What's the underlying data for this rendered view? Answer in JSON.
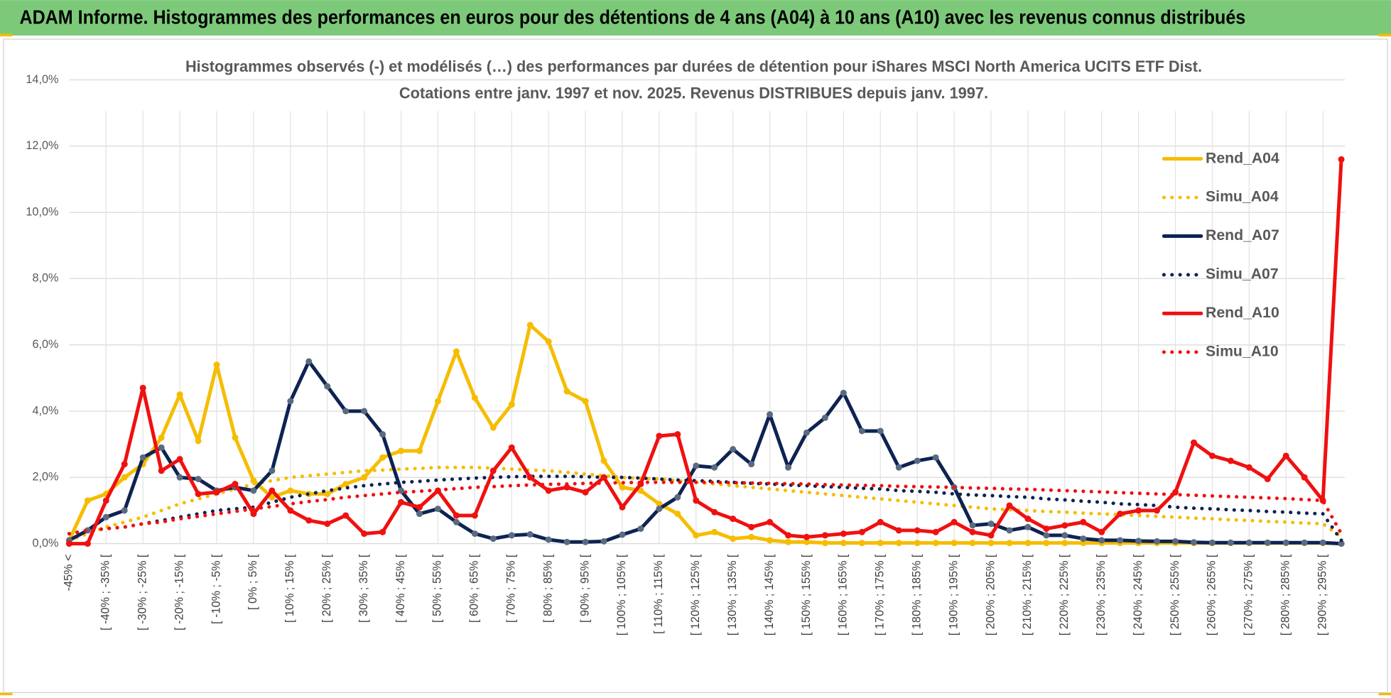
{
  "chart_data": {
    "type": "line",
    "banner": "ADAM Informe. Histogrammes des performances en euros pour des détentions de 4 ans (A04) à 10 ans (A10) avec les revenus connus distribués",
    "title": "Histogrammes observés (-) et modélisés (…) des performances par durées de détention pour iShares MSCI North America UCITS ETF Dist.",
    "subtitle": "Cotations entre janv. 1997 et nov. 2025. Revenus DISTRIBUES depuis janv. 1997.",
    "categories": [
      "-45% <",
      null,
      "[ -40% ; -35% [",
      null,
      "[ -30% ; -25% [",
      null,
      "[ -20% ; -15% [",
      null,
      "[ -10% ; -5% [",
      null,
      "[ 0% ; 5% [",
      null,
      "[ 10% ; 15% [",
      null,
      "[ 20% ; 25% [",
      null,
      "[ 30% ; 35% [",
      null,
      "[ 40% ; 45% [",
      null,
      "[ 50% ; 55% [",
      null,
      "[ 60% ; 65% [",
      null,
      "[ 70% ; 75% [",
      null,
      "[ 80% ; 85% [",
      null,
      "[ 90% ; 95% [",
      null,
      "[ 100% ; 105% [",
      null,
      "[ 110% ; 115% [",
      null,
      "[ 120% ; 125% [",
      null,
      "[ 130% ; 135% [",
      null,
      "[ 140% ; 145% [",
      null,
      "[ 150% ; 155% [",
      null,
      "[ 160% ; 165% [",
      null,
      "[ 170% ; 175% [",
      null,
      "[ 180% ; 185% [",
      null,
      "[ 190% ; 195% [",
      null,
      "[ 200% ; 205% [",
      null,
      "[ 210% ; 215% [",
      null,
      "[ 220% ; 225% [",
      null,
      "[ 230% ; 235% [",
      null,
      "[ 240% ; 245% [",
      null,
      "[ 250% ; 255% [",
      null,
      "[ 260% ; 265% [",
      null,
      "[ 270% ; 275% [",
      null,
      "[ 280% ; 285% [",
      null,
      "[ 290% ; 295% [",
      null
    ],
    "ylim": [
      0,
      14
    ],
    "yticks": [
      {
        "value": 0,
        "label": "0,0%"
      },
      {
        "value": 2,
        "label": "2,0%"
      },
      {
        "value": 4,
        "label": "4,0%"
      },
      {
        "value": 6,
        "label": "6,0%"
      },
      {
        "value": 8,
        "label": "8,0%"
      },
      {
        "value": 10,
        "label": "10,0%"
      },
      {
        "value": 12,
        "label": "12,0%"
      },
      {
        "value": 14,
        "label": "14,0%"
      }
    ],
    "grid": true,
    "legend": "right",
    "series": [
      {
        "name": "Rend_A04",
        "color": "#f5bd00",
        "style": "solid",
        "marker_color": "#f5bd00",
        "values": [
          0.1,
          1.3,
          1.5,
          2.0,
          2.4,
          3.2,
          4.5,
          3.1,
          5.4,
          3.2,
          1.9,
          1.4,
          1.6,
          1.5,
          1.5,
          1.8,
          2.0,
          2.6,
          2.8,
          2.8,
          4.3,
          5.8,
          4.4,
          3.5,
          4.2,
          6.6,
          6.1,
          4.6,
          4.3,
          2.5,
          1.7,
          1.6,
          1.2,
          0.9,
          0.25,
          0.35,
          0.15,
          0.2,
          0.1,
          0.05,
          0.05,
          0.02,
          0.02,
          0.02,
          0.02,
          0.02,
          0.02,
          0.02,
          0.02,
          0.02,
          0.02,
          0.02,
          0.02,
          0.02,
          0.02,
          0.02,
          0.02,
          0.02,
          0.02,
          0.02,
          0.02,
          0.02,
          0.02,
          0.02,
          0.02,
          0.02,
          0.02,
          0.02,
          0.02,
          0.0
        ]
      },
      {
        "name": "Simu_A04",
        "color": "#f5bd00",
        "style": "dotted",
        "values": [
          0.1,
          0.3,
          0.5,
          0.65,
          0.8,
          1.0,
          1.2,
          1.35,
          1.5,
          1.65,
          1.8,
          1.9,
          2.0,
          2.05,
          2.1,
          2.15,
          2.2,
          2.22,
          2.25,
          2.27,
          2.3,
          2.3,
          2.3,
          2.28,
          2.25,
          2.22,
          2.2,
          2.15,
          2.1,
          2.05,
          2.0,
          1.97,
          1.95,
          1.9,
          1.85,
          1.8,
          1.75,
          1.7,
          1.65,
          1.6,
          1.55,
          1.5,
          1.45,
          1.4,
          1.35,
          1.3,
          1.25,
          1.2,
          1.15,
          1.1,
          1.05,
          1.02,
          1.0,
          0.97,
          0.95,
          0.92,
          0.9,
          0.87,
          0.85,
          0.82,
          0.8,
          0.77,
          0.75,
          0.72,
          0.7,
          0.67,
          0.65,
          0.62,
          0.6,
          0.2
        ]
      },
      {
        "name": "Rend_A07",
        "color": "#0d2352",
        "style": "solid",
        "marker_color": "#5a6a80",
        "values": [
          0.1,
          0.4,
          0.8,
          1.0,
          2.6,
          2.9,
          2.0,
          1.95,
          1.6,
          1.7,
          1.6,
          2.2,
          4.3,
          5.5,
          4.75,
          4.0,
          4.0,
          3.3,
          1.6,
          0.9,
          1.05,
          0.65,
          0.3,
          0.15,
          0.25,
          0.28,
          0.12,
          0.05,
          0.05,
          0.07,
          0.27,
          0.45,
          1.05,
          1.4,
          2.35,
          2.3,
          2.85,
          2.4,
          3.9,
          2.3,
          3.35,
          3.8,
          4.55,
          3.4,
          3.4,
          2.3,
          2.5,
          2.6,
          1.7,
          0.55,
          0.6,
          0.4,
          0.5,
          0.25,
          0.25,
          0.15,
          0.1,
          0.1,
          0.08,
          0.07,
          0.07,
          0.04,
          0.03,
          0.03,
          0.03,
          0.03,
          0.03,
          0.03,
          0.03,
          0.0
        ]
      },
      {
        "name": "Simu_A07",
        "color": "#0d2352",
        "style": "dotted",
        "values": [
          0.3,
          0.4,
          0.45,
          0.5,
          0.6,
          0.7,
          0.8,
          0.9,
          1.0,
          1.05,
          1.1,
          1.25,
          1.4,
          1.5,
          1.6,
          1.68,
          1.75,
          1.8,
          1.85,
          1.88,
          1.92,
          1.95,
          1.98,
          2.0,
          2.02,
          2.03,
          2.03,
          2.03,
          2.02,
          2.0,
          2.0,
          1.98,
          1.95,
          1.92,
          1.9,
          1.88,
          1.85,
          1.82,
          1.8,
          1.77,
          1.75,
          1.72,
          1.7,
          1.67,
          1.65,
          1.6,
          1.58,
          1.55,
          1.5,
          1.47,
          1.45,
          1.42,
          1.4,
          1.35,
          1.32,
          1.28,
          1.25,
          1.2,
          1.18,
          1.15,
          1.1,
          1.07,
          1.05,
          1.02,
          1.0,
          0.97,
          0.95,
          0.92,
          0.9,
          0.1
        ]
      },
      {
        "name": "Rend_A10",
        "color": "#f01010",
        "style": "solid",
        "marker_color": "#f01010",
        "values": [
          0.0,
          0.0,
          1.3,
          2.4,
          4.7,
          2.2,
          2.55,
          1.5,
          1.55,
          1.8,
          0.9,
          1.6,
          1.0,
          0.7,
          0.6,
          0.85,
          0.3,
          0.35,
          1.25,
          1.1,
          1.6,
          0.85,
          0.85,
          2.2,
          2.9,
          2.0,
          1.6,
          1.7,
          1.55,
          2.0,
          1.1,
          1.8,
          3.25,
          3.3,
          1.3,
          0.95,
          0.75,
          0.5,
          0.65,
          0.25,
          0.2,
          0.25,
          0.3,
          0.35,
          0.65,
          0.4,
          0.4,
          0.35,
          0.65,
          0.35,
          0.25,
          1.15,
          0.75,
          0.45,
          0.55,
          0.65,
          0.35,
          0.9,
          1.0,
          1.0,
          1.55,
          3.05,
          2.65,
          2.5,
          2.3,
          1.95,
          2.65,
          2.0,
          1.3,
          11.6
        ]
      },
      {
        "name": "Simu_A10",
        "color": "#f01010",
        "style": "dotted",
        "values": [
          0.3,
          0.4,
          0.45,
          0.5,
          0.6,
          0.65,
          0.75,
          0.82,
          0.9,
          0.97,
          1.05,
          1.12,
          1.2,
          1.27,
          1.33,
          1.4,
          1.45,
          1.5,
          1.55,
          1.58,
          1.62,
          1.66,
          1.7,
          1.72,
          1.75,
          1.77,
          1.79,
          1.8,
          1.82,
          1.83,
          1.84,
          1.85,
          1.85,
          1.85,
          1.85,
          1.85,
          1.84,
          1.83,
          1.82,
          1.81,
          1.8,
          1.78,
          1.77,
          1.76,
          1.75,
          1.73,
          1.72,
          1.71,
          1.7,
          1.68,
          1.67,
          1.65,
          1.64,
          1.62,
          1.6,
          1.58,
          1.56,
          1.54,
          1.52,
          1.5,
          1.48,
          1.46,
          1.44,
          1.42,
          1.4,
          1.38,
          1.36,
          1.33,
          1.3,
          0.3
        ]
      }
    ]
  }
}
